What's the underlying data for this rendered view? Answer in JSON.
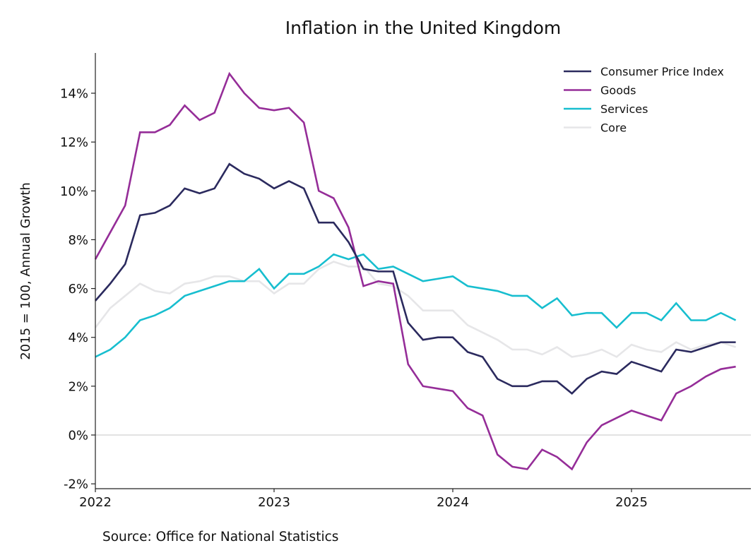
{
  "chart_data": {
    "type": "line",
    "title": "Inflation in the United Kingdom",
    "xlabel": "",
    "ylabel": "2015 = 100, Annual Growth",
    "source": "Source: Office for National Statistics",
    "x_start": "2022-01",
    "x_frequency": "monthly",
    "x_ticks": [
      "2022",
      "2023",
      "2024",
      "2025"
    ],
    "x_range_months": [
      0,
      44
    ],
    "ylim": [
      -2.2,
      15.8
    ],
    "y_ticks": [
      -2,
      0,
      2,
      4,
      6,
      8,
      10,
      12,
      14
    ],
    "y_tick_labels": [
      "-2%",
      "0%",
      "2%",
      "4%",
      "6%",
      "8%",
      "10%",
      "12%",
      "14%"
    ],
    "zero_line": true,
    "grid": false,
    "legend_position": "top-right",
    "series": [
      {
        "name": "Consumer Price Index",
        "color": "#2b2a5e",
        "values": [
          5.5,
          6.2,
          7.0,
          9.0,
          9.1,
          9.4,
          10.1,
          9.9,
          10.1,
          11.1,
          10.7,
          10.5,
          10.1,
          10.4,
          10.1,
          8.7,
          8.7,
          7.9,
          6.8,
          6.7,
          6.7,
          4.6,
          3.9,
          4.0,
          4.0,
          3.4,
          3.2,
          2.3,
          2.0,
          2.0,
          2.2,
          2.2,
          1.7,
          2.3,
          2.6,
          2.5,
          3.0,
          2.8,
          2.6,
          3.5,
          3.4,
          3.6,
          3.8,
          3.8
        ]
      },
      {
        "name": "Goods",
        "color": "#952d98",
        "values": [
          7.2,
          8.3,
          9.4,
          12.4,
          12.4,
          12.7,
          13.5,
          12.9,
          13.2,
          14.8,
          14.0,
          13.4,
          13.3,
          13.4,
          12.8,
          10.0,
          9.7,
          8.5,
          6.1,
          6.3,
          6.2,
          2.9,
          2.0,
          1.9,
          1.8,
          1.1,
          0.8,
          -0.8,
          -1.3,
          -1.4,
          -0.6,
          -0.9,
          -1.4,
          -0.3,
          0.4,
          0.7,
          1.0,
          0.8,
          0.6,
          1.7,
          2.0,
          2.4,
          2.7,
          2.8
        ]
      },
      {
        "name": "Services",
        "color": "#17becf",
        "values": [
          3.2,
          3.5,
          4.0,
          4.7,
          4.9,
          5.2,
          5.7,
          5.9,
          6.1,
          6.3,
          6.3,
          6.8,
          6.0,
          6.6,
          6.6,
          6.9,
          7.4,
          7.2,
          7.4,
          6.8,
          6.9,
          6.6,
          6.3,
          6.4,
          6.5,
          6.1,
          6.0,
          5.9,
          5.7,
          5.7,
          5.2,
          5.6,
          4.9,
          5.0,
          5.0,
          4.4,
          5.0,
          5.0,
          4.7,
          5.4,
          4.7,
          4.7,
          5.0,
          4.7
        ]
      },
      {
        "name": "Core",
        "color": "#e6e6e8",
        "values": [
          4.4,
          5.2,
          5.7,
          6.2,
          5.9,
          5.8,
          6.2,
          6.3,
          6.5,
          6.5,
          6.3,
          6.3,
          5.8,
          6.2,
          6.2,
          6.8,
          7.1,
          6.9,
          6.9,
          6.2,
          6.1,
          5.7,
          5.1,
          5.1,
          5.1,
          4.5,
          4.2,
          3.9,
          3.5,
          3.5,
          3.3,
          3.6,
          3.2,
          3.3,
          3.5,
          3.2,
          3.7,
          3.5,
          3.4,
          3.8,
          3.5,
          3.7,
          3.8,
          3.6
        ]
      }
    ]
  }
}
